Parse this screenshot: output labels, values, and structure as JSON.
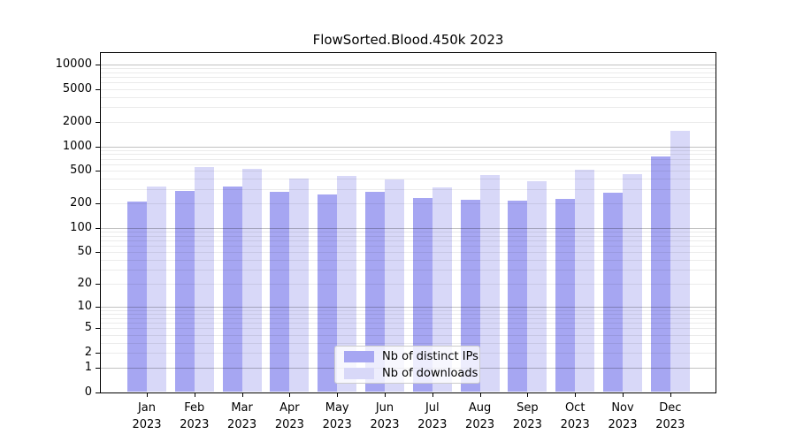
{
  "title": "FlowSorted.Blood.450k 2023",
  "chart_data": {
    "type": "bar",
    "title": "FlowSorted.Blood.450k 2023",
    "yscale": "log1p",
    "ylim": [
      0,
      14124
    ],
    "grid": "on",
    "legend_position": "bottom-center",
    "categories": [
      "Jan",
      "Feb",
      "Mar",
      "Apr",
      "May",
      "Jun",
      "Jul",
      "Aug",
      "Sep",
      "Oct",
      "Nov",
      "Dec"
    ],
    "category_year": "2023",
    "y_ticks": [
      0,
      1,
      2,
      5,
      10,
      20,
      50,
      100,
      200,
      500,
      1000,
      2000,
      5000,
      10000
    ],
    "series": [
      {
        "name": "Nb of distinct IPs",
        "color": "#a6a6f2",
        "values": [
          210,
          283,
          325,
          275,
          260,
          275,
          231,
          221,
          218,
          230,
          268,
          757
        ]
      },
      {
        "name": "Nb of downloads",
        "color": "#d8d8f8",
        "values": [
          323,
          553,
          527,
          404,
          430,
          391,
          313,
          444,
          372,
          514,
          455,
          1560
        ]
      }
    ],
    "colors": {
      "major_grid": "rgba(0,0,0,0.24)",
      "minor_grid": "rgba(0,0,0,0.08)",
      "spine": "#000000"
    }
  }
}
